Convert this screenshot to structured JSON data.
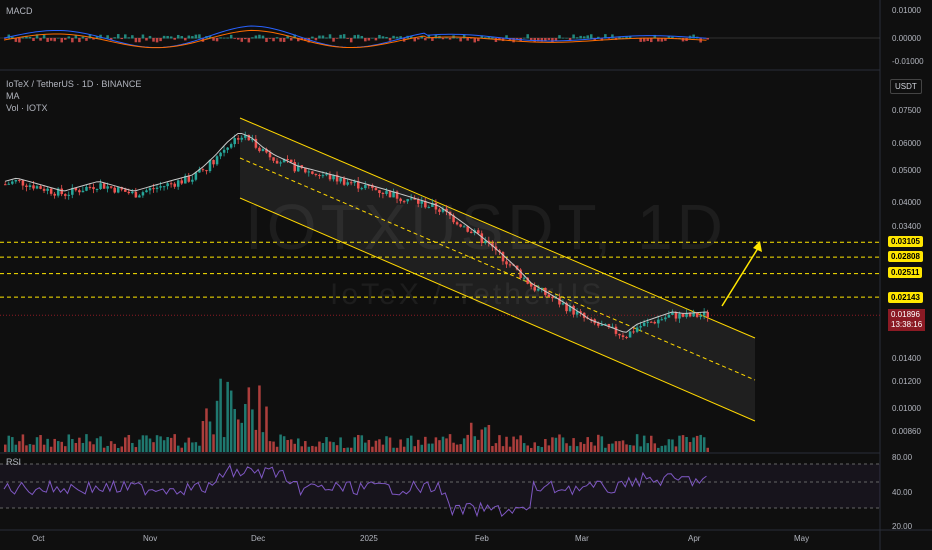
{
  "header": {
    "symbol_line": "IoTeX / TetherUS · 1D · BINANCE",
    "indicator_ma": "MA",
    "indicator_vol": "Vol · IOTX",
    "macd_label": "MACD",
    "rsi_label": "RSI",
    "currency": "USDT"
  },
  "watermark": {
    "ticker": "IOTXUSDT, 1D",
    "name": "IoTeX / TetherUS"
  },
  "price_axis": [
    "0.07500",
    "0.06000",
    "0.05000",
    "0.04000",
    "0.03400",
    "0.01400",
    "0.01200",
    "0.01000",
    "0.00860"
  ],
  "macd_axis": [
    "0.01000",
    "0.00000",
    "-0.01000"
  ],
  "rsi_axis": [
    "80.00",
    "40.00",
    "20.00"
  ],
  "levels": [
    "0.03105",
    "0.02808",
    "0.02511",
    "0.02143"
  ],
  "current_price": {
    "value": "0.01896",
    "countdown": "13:38:16"
  },
  "time_axis": [
    "Oct",
    "Nov",
    "Dec",
    "2025",
    "Feb",
    "Mar",
    "Apr",
    "May"
  ],
  "colors": {
    "up": "#26a69a",
    "down": "#ef5350",
    "level": "#ffe600",
    "channel": "#ffd700",
    "ma": "#c9c9c9",
    "rsi": "#7e57c2",
    "bg": "#0f0f0f"
  },
  "chart_data": {
    "type": "candlestick",
    "timeframe": "1D",
    "price_levels": [
      0.03105,
      0.02808,
      0.02511,
      0.02143
    ],
    "current_price": 0.01896,
    "closes_approx": [
      0.046,
      0.047,
      0.046,
      0.045,
      0.044,
      0.043,
      0.044,
      0.045,
      0.046,
      0.045,
      0.044,
      0.043,
      0.044,
      0.045,
      0.046,
      0.047,
      0.048,
      0.051,
      0.055,
      0.06,
      0.064,
      0.062,
      0.058,
      0.055,
      0.053,
      0.051,
      0.05,
      0.049,
      0.048,
      0.047,
      0.046,
      0.045,
      0.044,
      0.043,
      0.042,
      0.041,
      0.04,
      0.039,
      0.037,
      0.035,
      0.033,
      0.031,
      0.029,
      0.027,
      0.025,
      0.023,
      0.022,
      0.021,
      0.02,
      0.019,
      0.018,
      0.0175,
      0.017,
      0.0165,
      0.0175,
      0.018,
      0.0185,
      0.019,
      0.0188,
      0.0189,
      0.019
    ],
    "rsi_levels": [
      80,
      40,
      20
    ]
  }
}
